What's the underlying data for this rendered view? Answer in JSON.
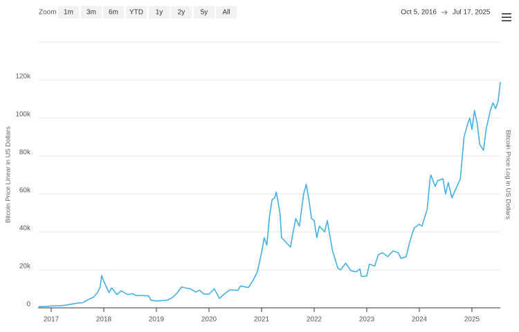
{
  "toolbar": {
    "zoom_label": "Zoom",
    "buttons": [
      "1m",
      "3m",
      "6m",
      "YTD",
      "1y",
      "2y",
      "5y",
      "All"
    ],
    "from": "Oct 5, 2016",
    "to": "Jul 17, 2025"
  },
  "chart_data": {
    "type": "line",
    "y_label": "Bitcoin Price Linear in US Dollars",
    "y2_label": "Bitcoin Price Log in US Dollars",
    "x": [
      2016.76,
      2016.9,
      2017.0,
      2017.2,
      2017.35,
      2017.5,
      2017.6,
      2017.7,
      2017.8,
      2017.88,
      2017.93,
      2017.96,
      2018.0,
      2018.05,
      2018.1,
      2018.15,
      2018.25,
      2018.33,
      2018.45,
      2018.55,
      2018.6,
      2018.7,
      2018.85,
      2018.9,
      2019.0,
      2019.2,
      2019.3,
      2019.4,
      2019.48,
      2019.55,
      2019.65,
      2019.75,
      2019.82,
      2019.9,
      2020.0,
      2020.1,
      2020.2,
      2020.3,
      2020.4,
      2020.55,
      2020.6,
      2020.75,
      2020.85,
      2020.92,
      2021.0,
      2021.05,
      2021.1,
      2021.15,
      2021.2,
      2021.25,
      2021.28,
      2021.35,
      2021.38,
      2021.45,
      2021.55,
      2021.6,
      2021.65,
      2021.72,
      2021.8,
      2021.85,
      2021.9,
      2021.95,
      2022.0,
      2022.05,
      2022.1,
      2022.2,
      2022.25,
      2022.3,
      2022.35,
      2022.45,
      2022.5,
      2022.6,
      2022.7,
      2022.8,
      2022.87,
      2022.9,
      2023.0,
      2023.05,
      2023.15,
      2023.22,
      2023.3,
      2023.4,
      2023.5,
      2023.6,
      2023.65,
      2023.75,
      2023.82,
      2023.9,
      2023.95,
      2024.0,
      2024.05,
      2024.15,
      2024.2,
      2024.22,
      2024.3,
      2024.35,
      2024.45,
      2024.5,
      2024.55,
      2024.62,
      2024.7,
      2024.78,
      2024.85,
      2024.92,
      2024.96,
      2025.0,
      2025.05,
      2025.1,
      2025.15,
      2025.22,
      2025.27,
      2025.35,
      2025.4,
      2025.45,
      2025.5,
      2025.54
    ],
    "series": [
      {
        "name": "Bitcoin Price",
        "color": "#41b0e8",
        "values": [
          600,
          700,
          1000,
          1100,
          1800,
          2500,
          2700,
          4300,
          5500,
          8000,
          11000,
          17000,
          14000,
          11000,
          8000,
          10500,
          7000,
          9000,
          7000,
          7500,
          6500,
          6500,
          6300,
          4000,
          3600,
          4000,
          5300,
          8000,
          11000,
          10500,
          10000,
          8300,
          9300,
          7300,
          7200,
          10000,
          5000,
          7500,
          9500,
          9200,
          11500,
          10700,
          15000,
          19000,
          29000,
          37000,
          33000,
          48000,
          57000,
          58000,
          61000,
          50000,
          37000,
          35000,
          32000,
          40000,
          47000,
          43000,
          60000,
          65000,
          57000,
          47000,
          46000,
          37000,
          43000,
          40000,
          46000,
          38000,
          30000,
          21000,
          20000,
          23500,
          19500,
          19000,
          20500,
          16500,
          16800,
          23000,
          22000,
          28000,
          29000,
          27000,
          30000,
          29000,
          26000,
          27000,
          35000,
          42000,
          43000,
          44000,
          43000,
          52000,
          67000,
          70000,
          64000,
          67000,
          68000,
          60000,
          66000,
          58000,
          63000,
          68000,
          90000,
          97000,
          100000,
          94000,
          104000,
          97000,
          86000,
          83000,
          94000,
          104000,
          108000,
          105000,
          109000,
          119000
        ]
      }
    ],
    "xlim": [
      2016.75,
      2025.54
    ],
    "xticks": [
      2017,
      2018,
      2019,
      2020,
      2021,
      2022,
      2023,
      2024,
      2025
    ],
    "ylim": [
      0,
      140000
    ],
    "yticks": [
      0,
      {
        "value": 20000,
        "label": "20k"
      },
      {
        "value": 40000,
        "label": "40k"
      },
      {
        "value": 60000,
        "label": "60k"
      },
      {
        "value": 80000,
        "label": "80k"
      },
      {
        "value": 100000,
        "label": "100k"
      },
      {
        "value": 120000,
        "label": "120k"
      }
    ],
    "grid": true
  }
}
